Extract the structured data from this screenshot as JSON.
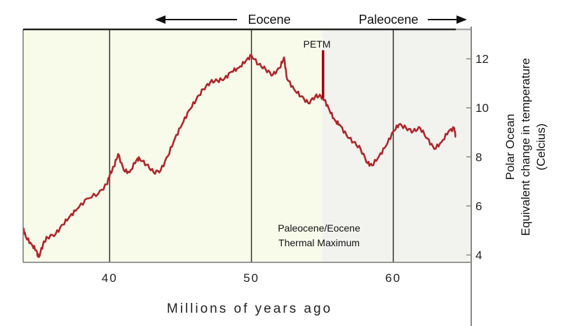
{
  "chart_data": {
    "type": "line",
    "title": "",
    "xlabel": "Millions of years ago",
    "ylabel_lines": [
      "Polar Ocean",
      "Equivalent change in temperature",
      "(Celcius)"
    ],
    "xlim": [
      33.9,
      65.5
    ],
    "ylim": [
      3.7,
      13.2
    ],
    "xticks": [
      40,
      50,
      60
    ],
    "yticks": [
      4,
      6,
      8,
      10,
      12
    ],
    "grid": "vertical lines at x ticks",
    "eras": [
      {
        "label": "Eocene",
        "arrow": "left"
      },
      {
        "label": "Paleocene",
        "arrow": "right"
      }
    ],
    "regions": [
      {
        "name": "Eocene",
        "from": 33.9,
        "to": 55,
        "color": "#f8fbea"
      },
      {
        "name": "Paleocene",
        "from": 55,
        "to": 65.5,
        "color": "#f2f2ef"
      }
    ],
    "annotations": {
      "petm_label": "PETM",
      "petm_desc_line1": "Paleocene/Eocene",
      "petm_desc_line2": "Thermal Maximum",
      "petm_spike": {
        "x": 55.05,
        "y_from": 10.4,
        "y_to": 12.35
      }
    },
    "series": [
      {
        "name": "Polar ocean temperature",
        "color": "#b0262a",
        "x": [
          33.9,
          34.1,
          34.5,
          34.8,
          35.0,
          35.3,
          35.6,
          36.2,
          36.7,
          37.2,
          37.7,
          38.4,
          39.2,
          39.8,
          40.0,
          40.3,
          40.6,
          41.0,
          41.4,
          41.9,
          42.1,
          42.6,
          43.1,
          43.6,
          44.1,
          44.6,
          45.1,
          45.6,
          46.1,
          46.6,
          47.1,
          47.6,
          48.1,
          48.6,
          49.1,
          49.6,
          50.0,
          50.5,
          51.0,
          51.5,
          52.0,
          52.3,
          52.5,
          53.0,
          53.5,
          54.0,
          54.5,
          54.9,
          55.15,
          55.5,
          55.9,
          56.2,
          56.7,
          57.2,
          57.7,
          58.2,
          58.5,
          59.0,
          59.5,
          60.0,
          60.4,
          60.9,
          61.4,
          61.9,
          62.4,
          62.9,
          63.4,
          63.9,
          64.3,
          64.4
        ],
        "y": [
          5.09,
          4.72,
          4.43,
          4.2,
          3.91,
          4.43,
          4.72,
          4.86,
          5.24,
          5.58,
          5.87,
          6.3,
          6.5,
          6.88,
          7.25,
          7.6,
          8.12,
          7.45,
          7.37,
          7.88,
          7.94,
          7.68,
          7.37,
          7.45,
          8.03,
          8.75,
          9.32,
          9.9,
          10.33,
          10.76,
          11.05,
          11.11,
          11.19,
          11.48,
          11.63,
          11.91,
          12.14,
          11.77,
          11.57,
          11.34,
          11.63,
          12.06,
          11.19,
          10.76,
          10.47,
          10.19,
          10.47,
          10.47,
          10.33,
          9.9,
          9.47,
          9.32,
          8.89,
          8.6,
          8.32,
          7.74,
          7.65,
          8.03,
          8.46,
          9.04,
          9.32,
          9.18,
          9.04,
          9.18,
          8.75,
          8.32,
          8.6,
          9.04,
          9.18,
          8.83
        ]
      }
    ]
  }
}
